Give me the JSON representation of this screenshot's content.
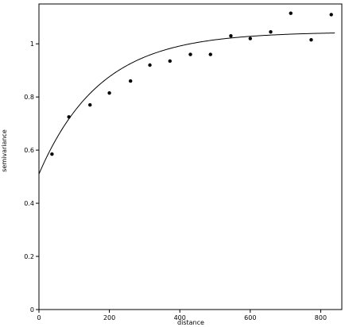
{
  "chart_data": {
    "type": "scatter",
    "xlabel": "distance",
    "ylabel": "semivariance",
    "xlim": [
      0,
      860
    ],
    "ylim": [
      0,
      1.15
    ],
    "x_ticks": [
      0,
      200,
      400,
      600,
      800
    ],
    "y_ticks": [
      0,
      0.2,
      0.4,
      0.6,
      0.8,
      1
    ],
    "x_tick_labels": [
      "0",
      "200",
      "400",
      "600",
      "800"
    ],
    "y_tick_labels": [
      "0",
      "0.2",
      "0.4",
      "0.6",
      "0.8",
      "1"
    ],
    "grid": false,
    "series": [
      {
        "kind": "points",
        "x": [
          37,
          85,
          145,
          200,
          260,
          315,
          372,
          430,
          487,
          545,
          600,
          658,
          715,
          773,
          830
        ],
        "y": [
          0.585,
          0.725,
          0.77,
          0.815,
          0.86,
          0.92,
          0.935,
          0.96,
          0.96,
          1.03,
          1.02,
          1.045,
          1.115,
          1.015,
          1.11
        ]
      },
      {
        "kind": "fitted-curve",
        "model": "exponential",
        "x_start": 0,
        "x_end": 840,
        "nugget": 0.51,
        "sill": 1.045,
        "range": 520
      }
    ],
    "colors": {
      "axis": "#000000",
      "points": "#000000",
      "curve": "#000000"
    }
  }
}
